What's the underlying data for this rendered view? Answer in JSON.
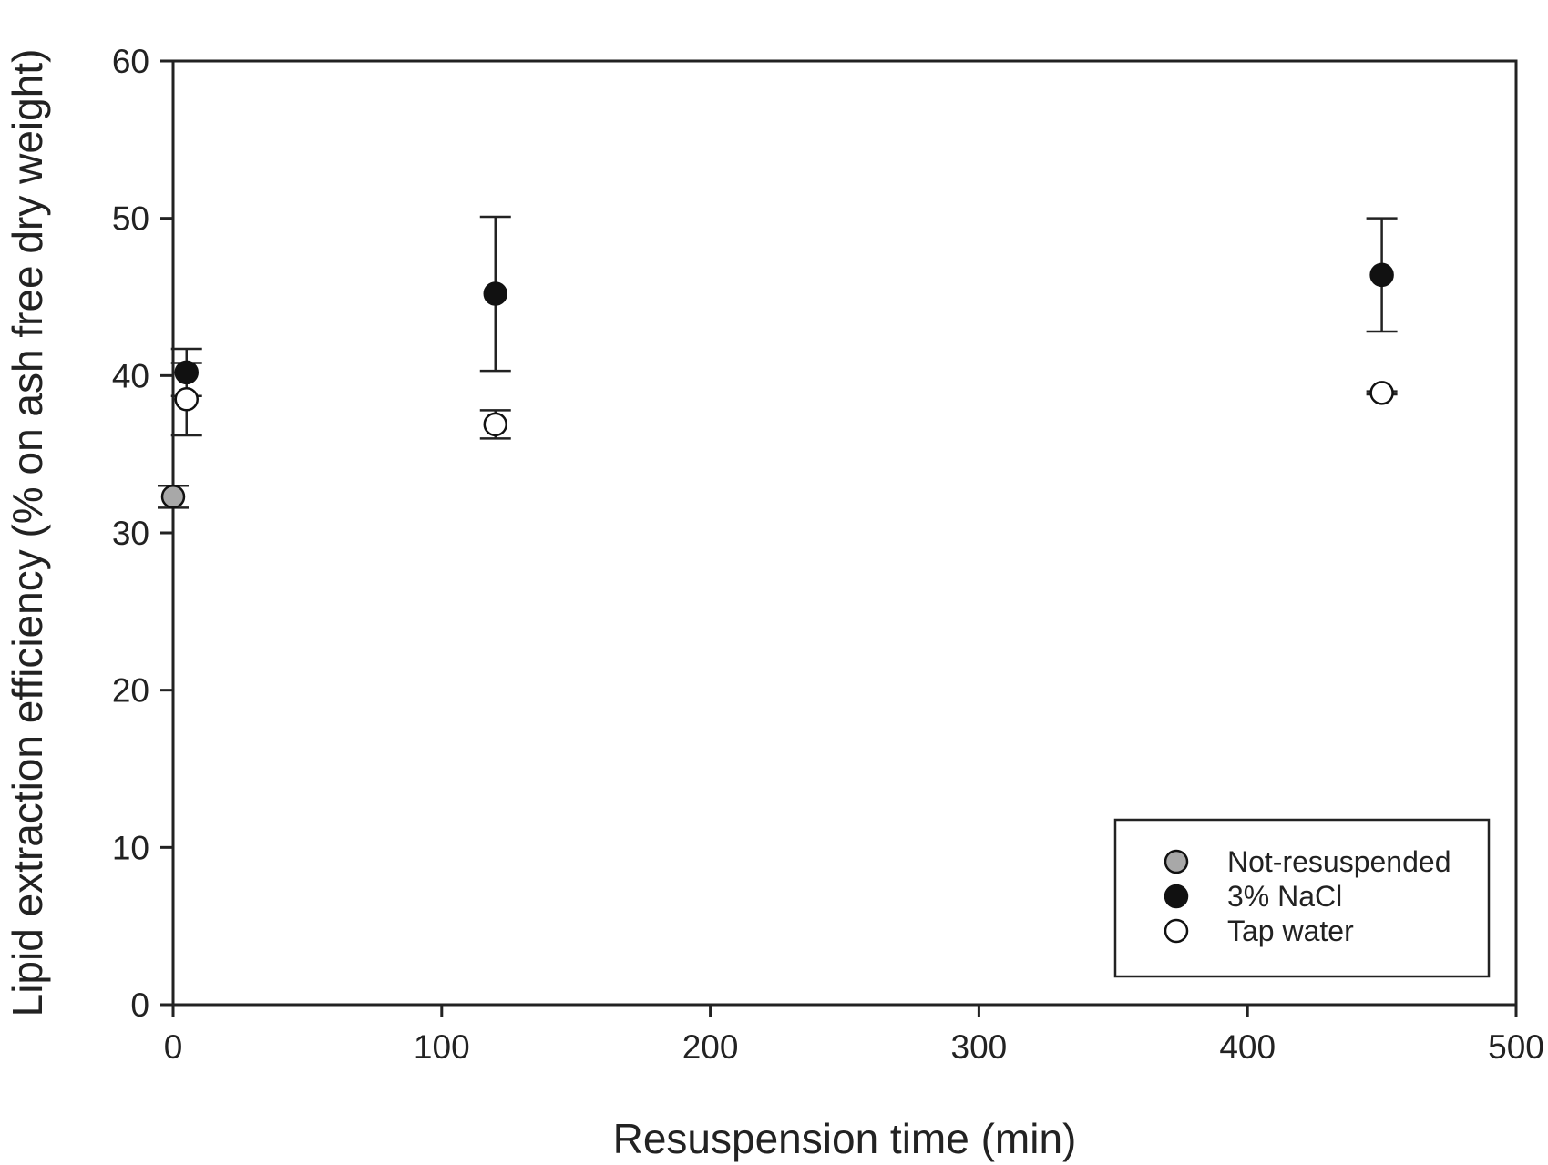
{
  "chart_data": {
    "type": "scatter",
    "title": "",
    "xlabel": "Resuspension time (min)",
    "ylabel": "Lipid extraction efficiency (% on ash free dry weight)",
    "xlim": [
      0,
      500
    ],
    "ylim": [
      0,
      60
    ],
    "x_ticks": [
      "0",
      "100",
      "200",
      "300",
      "400",
      "500"
    ],
    "y_ticks": [
      "0",
      "10",
      "20",
      "30",
      "40",
      "50",
      "60"
    ],
    "grid": false,
    "legend_position": "bottom-right",
    "error_bars": true,
    "series": [
      {
        "name": "Not-resuspended",
        "marker": "filled-circle",
        "color": "#a8a8a8",
        "points": [
          {
            "x": 0,
            "y": 32.3,
            "yerr": 0.7
          }
        ]
      },
      {
        "name": "3% NaCl",
        "marker": "filled-circle",
        "color": "#111111",
        "points": [
          {
            "x": 5,
            "y": 40.2,
            "yerr": 1.5
          },
          {
            "x": 120,
            "y": 45.2,
            "yerr": 4.9
          },
          {
            "x": 450,
            "y": 46.4,
            "yerr": 3.6
          }
        ]
      },
      {
        "name": "Tap water",
        "marker": "open-circle",
        "color": "#ffffff",
        "points": [
          {
            "x": 5,
            "y": 38.5,
            "yerr": 2.3
          },
          {
            "x": 120,
            "y": 36.9,
            "yerr": 0.9
          },
          {
            "x": 450,
            "y": 38.9,
            "yerr": 0.1
          }
        ]
      }
    ]
  }
}
